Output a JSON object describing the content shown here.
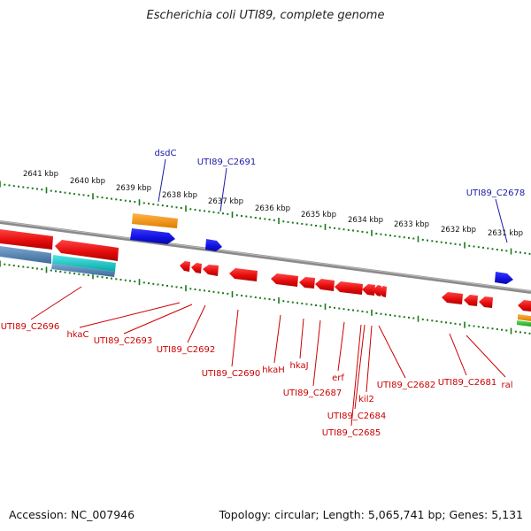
{
  "title": "Escherichia coli UTI89, complete genome",
  "footer": {
    "accession": "Accession: NC_007946",
    "summary": "Topology: circular; Length: 5,065,741 bp; Genes: 5,131"
  },
  "kbp_labels": [
    "2641 kbp",
    "2640 kbp",
    "2639 kbp",
    "2638 kbp",
    "2637 kbp",
    "2636 kbp",
    "2635 kbp",
    "2634 kbp",
    "2633 kbp",
    "2632 kbp",
    "2631 kbp"
  ],
  "forward_gene_labels": [
    "dsdC",
    "UTI89_C2691",
    "UTI89_C2678"
  ],
  "reverse_gene_labels": [
    "UTI89_C2696",
    "hkaC",
    "UTI89_C2693",
    "UTI89_C2692",
    "UTI89_C2690",
    "hkaH",
    "hkaJ",
    "UTI89_C2687",
    "erf",
    "UTI89_C2684",
    "kil2",
    "UTI89_C2685",
    "UTI89_C2682",
    "UTI89_C2681",
    "ral"
  ],
  "colors": {
    "backbone": "#888888",
    "forward_label": "#1a1aa6",
    "reverse_label": "#cc0000",
    "forward_gene": "#1515e0",
    "reverse_gene": "#ee1111",
    "tick": "#1a7a1a",
    "orange_gene": "#f39a1e",
    "cyan_gene": "#18c6c6",
    "steel_gene": "#4f7fb0"
  }
}
